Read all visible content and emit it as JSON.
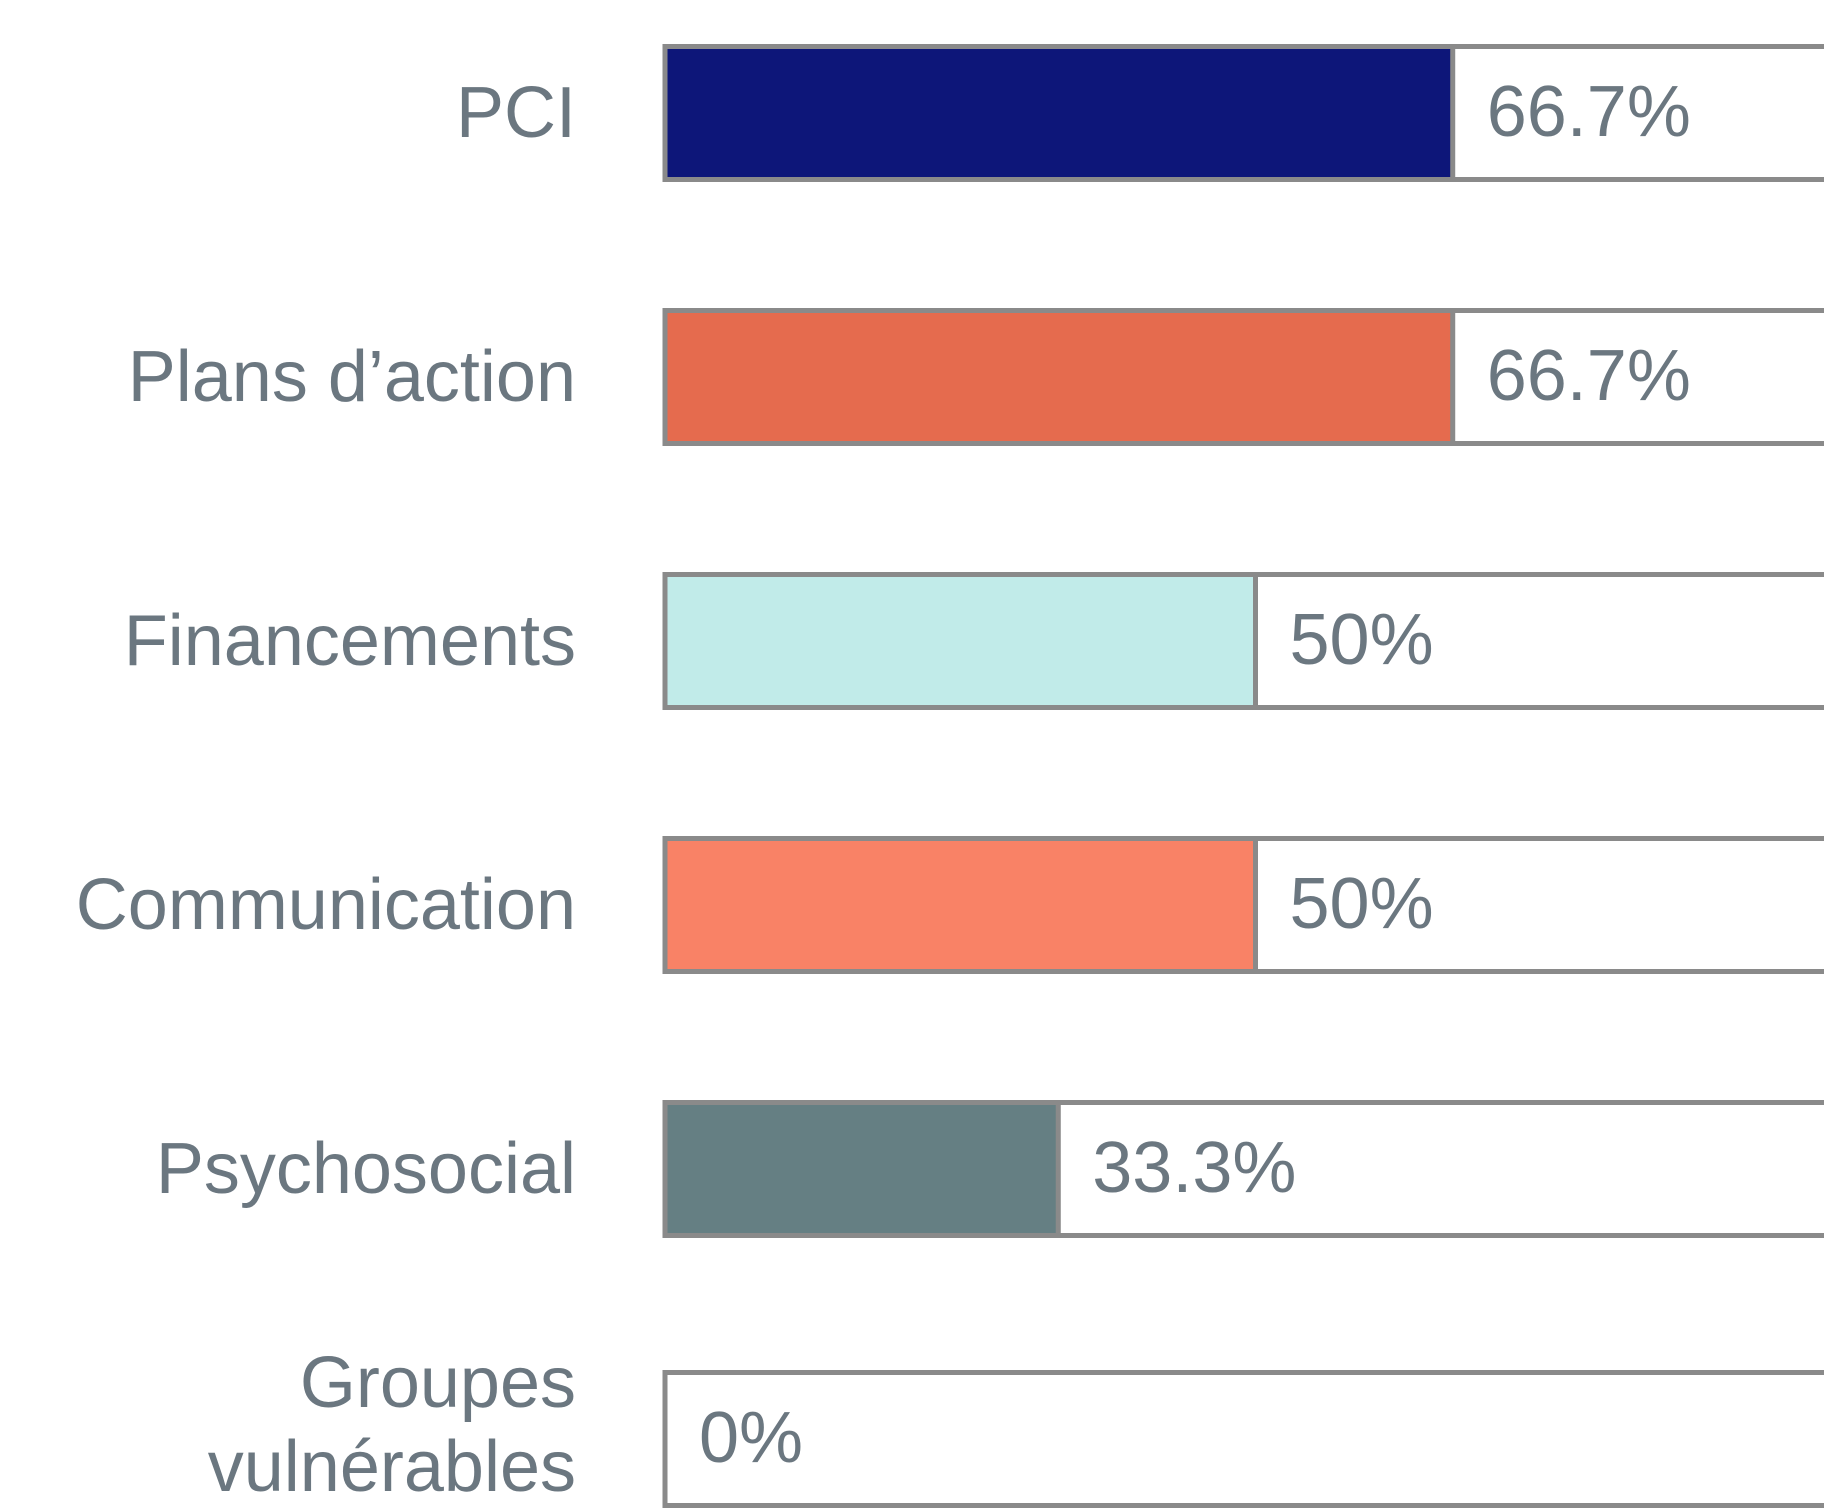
{
  "chart_data": {
    "type": "bar",
    "orientation": "horizontal",
    "categories": [
      "PCI",
      "Plans d’action",
      "Financements",
      "Communication",
      "Psychosocial",
      "Groupes vulnérables"
    ],
    "values": [
      66.7,
      66.7,
      50,
      50,
      33.3,
      0
    ],
    "value_labels": [
      "66.7%",
      "66.7%",
      "50%",
      "50%",
      "33.3%",
      "0%"
    ],
    "colors": [
      "#0d1679",
      "#e56b4e",
      "#c1ebe9",
      "#f98266",
      "#657f83",
      null
    ],
    "xlim": [
      0,
      100
    ]
  }
}
